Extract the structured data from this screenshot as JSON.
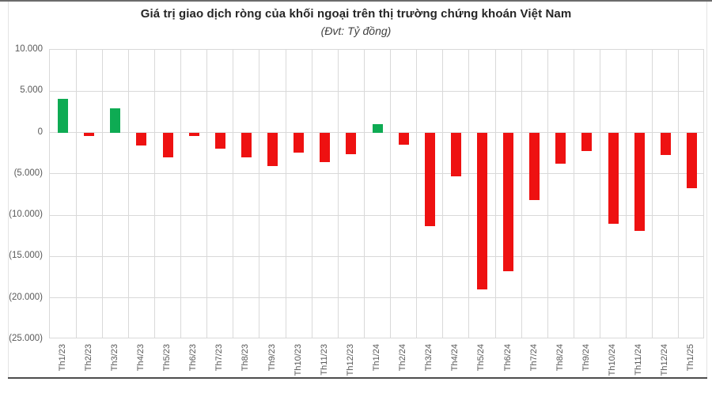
{
  "header": {
    "title": "Giá trị giao dịch ròng của khối ngoại trên thị trường chứng khoán Việt Nam",
    "subtitle": "(Đvt: Tỷ đồng)"
  },
  "chart_data": {
    "type": "bar",
    "title": "Giá trị giao dịch ròng của khối ngoại trên thị trường chứng khoán Việt Nam",
    "subtitle": "(Đvt: Tỷ đồng)",
    "unit": "Tỷ đồng",
    "categories": [
      "Th1/23",
      "Th2/23",
      "Th3/23",
      "Th4/23",
      "Th5/23",
      "Th6/23",
      "Th7/23",
      "Th8/23",
      "Th9/23",
      "Th10/23",
      "Th11/23",
      "Th12/23",
      "Th1/24",
      "Th2/24",
      "Th3/24",
      "Th4/24",
      "Th5/24",
      "Th6/24",
      "Th7/24",
      "Th8/24",
      "Th9/24",
      "Th10/24",
      "Th11/24",
      "Th12/24",
      "Th1/25"
    ],
    "values": [
      4100,
      -450,
      2900,
      -1550,
      -3000,
      -450,
      -1950,
      -3000,
      -4100,
      -2400,
      -3550,
      -2600,
      1050,
      -1500,
      -11300,
      -5300,
      -19000,
      -16800,
      -8200,
      -3800,
      -2200,
      -11000,
      -11900,
      -2750,
      -6700
    ],
    "xlabel": "",
    "ylabel": "",
    "ylim": [
      -25000,
      10000
    ],
    "ytick_interval": 5000,
    "ytick_labels": [
      "10.000",
      "5.000",
      "0",
      "(5.000)",
      "(10.000)",
      "(15.000)",
      "(20.000)",
      "(25.000)"
    ],
    "grid": true,
    "legend_position": "none",
    "colors": {
      "positive": "#0eab53",
      "negative": "#ee1111",
      "gridline": "#d9d9d9",
      "axis_text": "#595959",
      "title_text": "#262626"
    }
  }
}
